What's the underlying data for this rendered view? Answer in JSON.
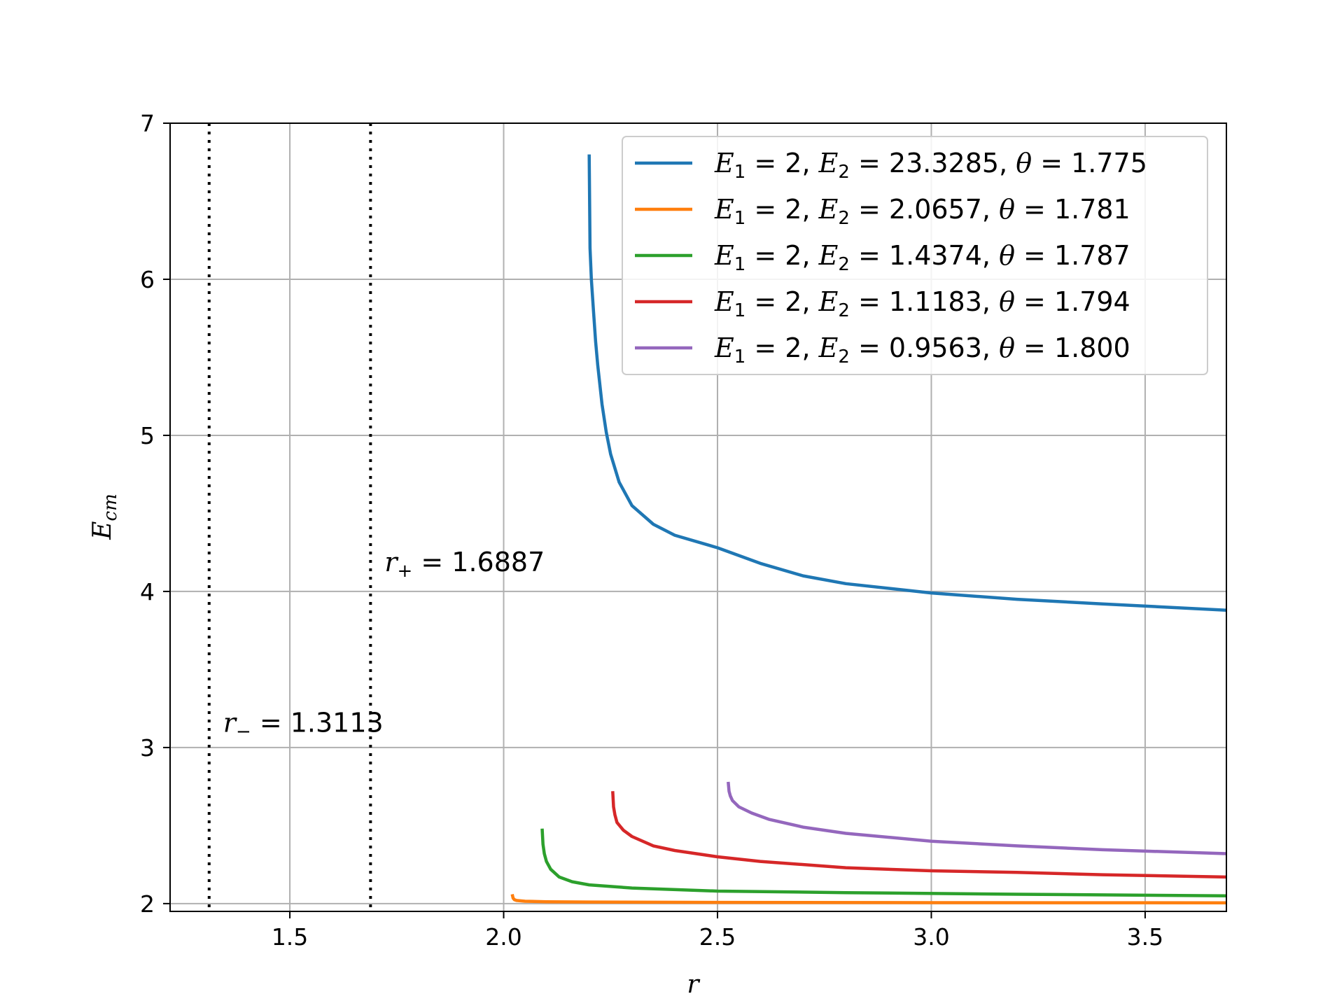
{
  "chart_data": {
    "type": "line",
    "xlabel": "r",
    "ylabel": "E",
    "ylabel_sub": "cm",
    "xlim": [
      1.22,
      3.69
    ],
    "ylim": [
      1.95,
      7.0
    ],
    "xticks": [
      1.5,
      2.0,
      2.5,
      3.0,
      3.5
    ],
    "xtick_labels": [
      "1.5",
      "2.0",
      "2.5",
      "3.0",
      "3.5"
    ],
    "yticks": [
      2,
      3,
      4,
      5,
      6,
      7
    ],
    "ytick_labels": [
      "2",
      "3",
      "4",
      "5",
      "6",
      "7"
    ],
    "grid": true,
    "legend_position": "top-right",
    "horizons": [
      {
        "id": "r_minus",
        "x": 1.3113,
        "symbol": "r",
        "sub": "−",
        "eq": " =  ",
        "value": "1.3113",
        "label_y": 3.1
      },
      {
        "id": "r_plus",
        "x": 1.6887,
        "symbol": "r",
        "sub": "+",
        "eq": " =  ",
        "value": "1.6887",
        "label_y": 4.13
      }
    ],
    "series": [
      {
        "legend": {
          "e1v": " =  2, ",
          "e2v": " =  23.3285, ",
          "thv": " =  1.775"
        },
        "color": "#1f77b4",
        "x": [
          2.2,
          2.202,
          2.205,
          2.21,
          2.215,
          2.22,
          2.23,
          2.24,
          2.25,
          2.27,
          2.3,
          2.35,
          2.4,
          2.5,
          2.6,
          2.7,
          2.8,
          3.0,
          3.2,
          3.4,
          3.69
        ],
        "y": [
          6.8,
          6.2,
          6.0,
          5.8,
          5.6,
          5.45,
          5.2,
          5.02,
          4.88,
          4.7,
          4.55,
          4.43,
          4.36,
          4.28,
          4.18,
          4.1,
          4.05,
          3.99,
          3.95,
          3.92,
          3.88
        ]
      },
      {
        "legend": {
          "e1v": " =  2, ",
          "e2v": " =  2.0657, ",
          "thv": " =  1.781"
        },
        "color": "#ff7f0e",
        "x": [
          2.02,
          2.022,
          2.025,
          2.03,
          2.05,
          2.1,
          2.2,
          2.5,
          3.0,
          3.69
        ],
        "y": [
          2.06,
          2.035,
          2.025,
          2.02,
          2.015,
          2.012,
          2.01,
          2.008,
          2.006,
          2.005
        ]
      },
      {
        "legend": {
          "e1v": " =  2, ",
          "e2v": " =  1.4374, ",
          "thv": " =  1.787"
        },
        "color": "#2ca02c",
        "x": [
          2.09,
          2.092,
          2.095,
          2.1,
          2.11,
          2.13,
          2.16,
          2.2,
          2.3,
          2.5,
          2.8,
          3.2,
          3.69
        ],
        "y": [
          2.48,
          2.38,
          2.32,
          2.27,
          2.22,
          2.17,
          2.14,
          2.12,
          2.1,
          2.08,
          2.07,
          2.06,
          2.05
        ]
      },
      {
        "legend": {
          "e1v": " =  2, ",
          "e2v": " =  1.1183, ",
          "thv": " =  1.794"
        },
        "color": "#d62728",
        "x": [
          2.255,
          2.257,
          2.26,
          2.265,
          2.28,
          2.3,
          2.35,
          2.4,
          2.5,
          2.6,
          2.8,
          3.0,
          3.2,
          3.4,
          3.69
        ],
        "y": [
          2.72,
          2.62,
          2.57,
          2.52,
          2.47,
          2.43,
          2.37,
          2.34,
          2.3,
          2.27,
          2.23,
          2.21,
          2.2,
          2.185,
          2.17
        ]
      },
      {
        "legend": {
          "e1v": " =  2, ",
          "e2v": " =  0.9563, ",
          "thv": " =  1.800"
        },
        "color": "#9467bd",
        "x": [
          2.525,
          2.527,
          2.53,
          2.535,
          2.55,
          2.58,
          2.62,
          2.7,
          2.8,
          3.0,
          3.2,
          3.4,
          3.69
        ],
        "y": [
          2.78,
          2.72,
          2.69,
          2.66,
          2.62,
          2.58,
          2.54,
          2.49,
          2.45,
          2.4,
          2.37,
          2.345,
          2.32
        ]
      }
    ]
  }
}
